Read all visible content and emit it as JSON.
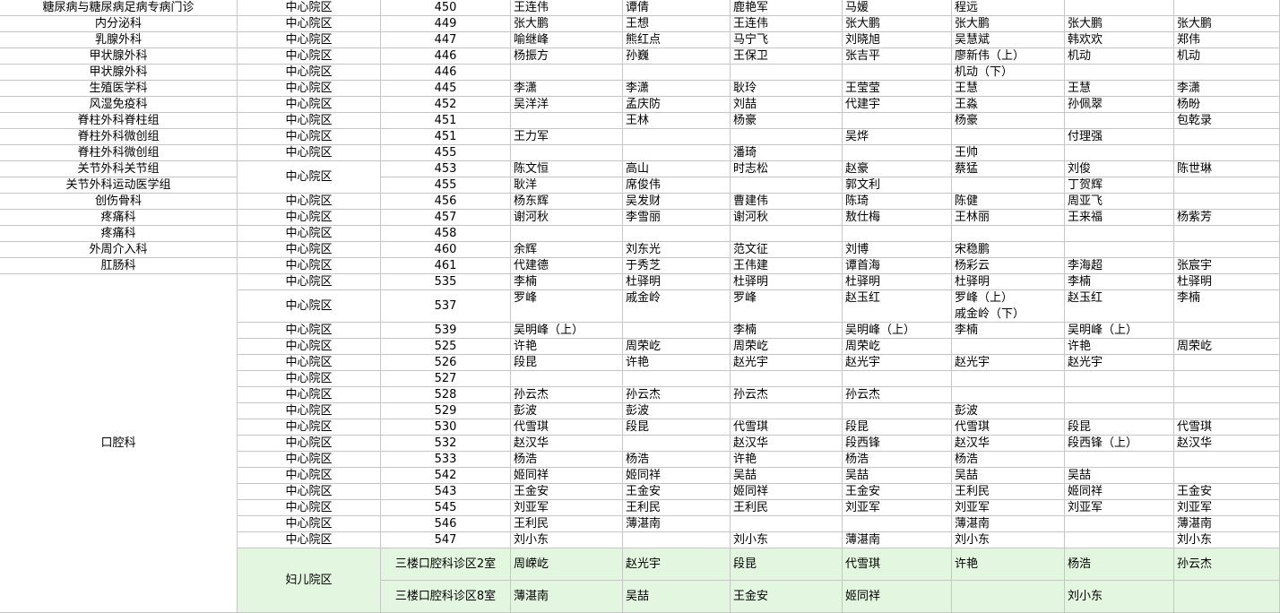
{
  "table": {
    "rows": [
      {
        "dept": "糖尿病与糖尿病足病专病门诊",
        "campus": "中心院区",
        "room": "450",
        "doctors": [
          "王连伟",
          "谭倩",
          "鹿艳军",
          "马媛",
          "程远",
          null,
          null
        ]
      },
      {
        "dept": "内分泌科",
        "campus": "中心院区",
        "room": "449",
        "doctors": [
          "张大鹏",
          "王想",
          "王连伟",
          "张大鹏",
          "张大鹏",
          "张大鹏",
          "张大鹏"
        ]
      },
      {
        "dept": "乳腺外科",
        "campus": "中心院区",
        "room": "447",
        "doctors": [
          "喻继峰",
          "熊红点",
          "马宁飞",
          "刘晓旭",
          "吴慧斌",
          "韩欢欢",
          "郑伟"
        ]
      },
      {
        "dept": "甲状腺外科",
        "campus": "中心院区",
        "room": "446",
        "doctors": [
          "杨振方",
          "孙巍",
          "王保卫",
          "张吉平",
          "廖新伟（上）",
          "机动",
          "机动"
        ]
      },
      {
        "dept": "甲状腺外科",
        "campus": "中心院区",
        "room": "446",
        "doctors": [
          null,
          null,
          null,
          null,
          "机动（下）",
          null,
          null
        ]
      },
      {
        "dept": "生殖医学科",
        "campus": "中心院区",
        "room": "445",
        "doctors": [
          "李潇",
          "李潇",
          "耿玲",
          "王莹莹",
          "王慧",
          "王慧",
          "李潇"
        ]
      },
      {
        "dept": "风湿免疫科",
        "campus": "中心院区",
        "room": "452",
        "doctors": [
          "吴洋洋",
          "孟庆防",
          "刘喆",
          "代建宇",
          "王淼",
          "孙佩翠",
          "杨昐"
        ]
      },
      {
        "dept": "脊柱外科脊柱组",
        "campus": "中心院区",
        "room": "451",
        "doctors": [
          null,
          "王林",
          "杨豪",
          null,
          "杨豪",
          null,
          "包乾录"
        ]
      },
      {
        "dept": "脊柱外科微创组",
        "campus": "中心院区",
        "room": "451",
        "doctors": [
          "王力军",
          null,
          null,
          "吴烨",
          null,
          "付理强",
          null
        ]
      },
      {
        "dept": "脊柱外科微创组",
        "campus": "中心院区",
        "room": "455",
        "doctors": [
          null,
          null,
          "潘琦",
          null,
          "王帅",
          null,
          null
        ]
      },
      {
        "dept": "关节外科关节组",
        "campus": "中心院区",
        "room": "453",
        "doctors": [
          "陈文恒",
          "高山",
          "时志松",
          "赵豪",
          "蔡猛",
          "刘俊",
          "陈世琳"
        ]
      },
      {
        "dept": "关节外科运动医学组",
        "room": "455",
        "doctors": [
          "耿洋",
          "席俊伟",
          null,
          "郭文利",
          null,
          "丁贺辉",
          null
        ]
      },
      {
        "dept": "创伤骨科",
        "campus": "中心院区",
        "room": "456",
        "doctors": [
          "杨东辉",
          "吴发财",
          "曹建伟",
          "陈琦",
          "陈健",
          "周亚飞",
          null
        ]
      },
      {
        "dept": "疼痛科",
        "campus": "中心院区",
        "room": "457",
        "doctors": [
          "谢河秋",
          "李雪丽",
          "谢河秋",
          "敖仕梅",
          "王林丽",
          "王来福",
          "杨紫芳"
        ]
      },
      {
        "dept": "疼痛科",
        "campus": "中心院区",
        "room": "458",
        "doctors": [
          null,
          null,
          null,
          null,
          null,
          null,
          null
        ]
      },
      {
        "dept": "外周介入科",
        "campus": "中心院区",
        "room": "460",
        "doctors": [
          "余辉",
          "刘东光",
          "范文征",
          "刘博",
          "宋稳鹏",
          null,
          null
        ]
      },
      {
        "dept": "肛肠科",
        "campus": "中心院区",
        "room": "461",
        "doctors": [
          "代建德",
          "于秀芝",
          "王伟建",
          "谭首海",
          "杨彩云",
          "李海超",
          "张宸宇"
        ]
      },
      {
        "dept": "口腔科",
        "campus": "中心院区",
        "room": "535",
        "doctors": [
          "李楠",
          "杜驿明",
          "杜驿明",
          "杜驿明",
          "杜驿明",
          "李楠",
          "杜驿明"
        ]
      },
      {
        "campus": "中心院区",
        "room": "537",
        "doctors": [
          "罗峰",
          "戚金岭",
          "罗峰",
          "赵玉红",
          [
            "罗峰（上）",
            "戚金岭（下）"
          ],
          "赵玉红",
          "李楠"
        ]
      },
      {
        "campus": "中心院区",
        "room": "539",
        "doctors": [
          "吴明峰（上）",
          null,
          "李楠",
          "吴明峰（上）",
          "李楠",
          "吴明峰（上）",
          null
        ]
      },
      {
        "campus": "中心院区",
        "room": "525",
        "doctors": [
          "许艳",
          "周荣屹",
          "周荣屹",
          "周荣屹",
          null,
          "许艳",
          "周荣屹"
        ]
      },
      {
        "campus": "中心院区",
        "room": "526",
        "doctors": [
          "段昆",
          "许艳",
          "赵光宇",
          "赵光宇",
          "赵光宇",
          "赵光宇",
          null
        ]
      },
      {
        "campus": "中心院区",
        "room": "527",
        "doctors": [
          null,
          null,
          null,
          null,
          null,
          null,
          null
        ]
      },
      {
        "campus": "中心院区",
        "room": "528",
        "doctors": [
          "孙云杰",
          "孙云杰",
          "孙云杰",
          "孙云杰",
          null,
          null,
          null
        ]
      },
      {
        "campus": "中心院区",
        "room": "529",
        "doctors": [
          "彭波",
          "彭波",
          null,
          null,
          "彭波",
          null,
          null
        ]
      },
      {
        "campus": "中心院区",
        "room": "530",
        "doctors": [
          "代雪琪",
          "段昆",
          "代雪琪",
          "段昆",
          "代雪琪",
          "段昆",
          "代雪琪"
        ]
      },
      {
        "campus": "中心院区",
        "room": "532",
        "doctors": [
          "赵汉华",
          null,
          "赵汉华",
          "段西锋",
          "赵汉华",
          "段西锋（上）",
          "赵汉华"
        ]
      },
      {
        "campus": "中心院区",
        "room": "533",
        "doctors": [
          "杨浩",
          "杨浩",
          "许艳",
          "杨浩",
          "杨浩",
          null,
          null
        ]
      },
      {
        "campus": "中心院区",
        "room": "542",
        "doctors": [
          "姬同祥",
          "姬同祥",
          "吴喆",
          "吴喆",
          "吴喆",
          "吴喆",
          null
        ]
      },
      {
        "campus": "中心院区",
        "room": "543",
        "doctors": [
          "王金安",
          "王金安",
          "姬同祥",
          "王金安",
          "王利民",
          "姬同祥",
          "王金安"
        ]
      },
      {
        "campus": "中心院区",
        "room": "545",
        "doctors": [
          "刘亚军",
          "王利民",
          "王利民",
          "刘亚军",
          "刘亚军",
          "刘亚军",
          "刘亚军"
        ]
      },
      {
        "campus": "中心院区",
        "room": "546",
        "doctors": [
          "王利民",
          "薄湛南",
          null,
          null,
          "薄湛南",
          null,
          "薄湛南"
        ]
      },
      {
        "campus": "中心院区",
        "room": "547",
        "doctors": [
          "刘小东",
          null,
          "刘小东",
          "薄湛南",
          "刘小东",
          null,
          "刘小东"
        ]
      },
      {
        "campus": "妇儿院区",
        "room": "三楼口腔科诊区2室",
        "highlight": true,
        "doctors": [
          "周嵘屹",
          "赵光宇",
          "段昆",
          "代雪琪",
          "许艳",
          "杨浩",
          "孙云杰"
        ]
      },
      {
        "room": "三楼口腔科诊区8室",
        "highlight": true,
        "doctors": [
          "薄湛南",
          "吴喆",
          "王金安",
          "姬同祥",
          null,
          "刘小东",
          null
        ]
      }
    ]
  }
}
